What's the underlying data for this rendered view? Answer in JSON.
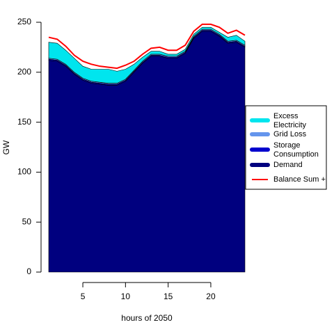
{
  "chart_data": {
    "type": "area",
    "xlabel": "hours of 2050",
    "ylabel": "GW",
    "xlim": [
      1,
      24
    ],
    "ylim": [
      0,
      250
    ],
    "x_ticks": [
      5,
      10,
      15,
      20
    ],
    "y_ticks": [
      0,
      50,
      100,
      150,
      200,
      250
    ],
    "grid": false,
    "legend_position": "right",
    "x": [
      1,
      2,
      3,
      4,
      5,
      6,
      7,
      8,
      9,
      10,
      11,
      12,
      13,
      14,
      15,
      16,
      17,
      18,
      19,
      20,
      21,
      22,
      23,
      24
    ],
    "series": [
      {
        "name": "Demand",
        "label_lines": [
          "Demand"
        ],
        "color": "#00007f",
        "kind": "area",
        "values": [
          212,
          211,
          206,
          198,
          192,
          189,
          188,
          187,
          187,
          191,
          200,
          209,
          216,
          216,
          214,
          214,
          219,
          234,
          241,
          241,
          236,
          229,
          230,
          225
        ]
      },
      {
        "name": "Storage Consumption",
        "label_lines": [
          "Storage",
          "Consumption"
        ],
        "color": "#0000cd",
        "kind": "area",
        "values": [
          1,
          1,
          1,
          1,
          1,
          1,
          1,
          1,
          1,
          1,
          1,
          1,
          1,
          1,
          1,
          1,
          1,
          1,
          1,
          1,
          1,
          1,
          1,
          1
        ]
      },
      {
        "name": "Grid Loss",
        "label_lines": [
          "Grid Loss"
        ],
        "color": "#6495ed",
        "kind": "area",
        "values": [
          1,
          1,
          1,
          1,
          1,
          1,
          1,
          1,
          1,
          1,
          1,
          1,
          1,
          1,
          1,
          1,
          1,
          1,
          1,
          1,
          1,
          1,
          1,
          1
        ]
      },
      {
        "name": "Excess Electricity",
        "label_lines": [
          "Excess",
          "Electricity"
        ],
        "color": "#00e5ee",
        "kind": "area",
        "values": [
          16,
          16,
          14,
          14,
          12,
          12,
          13,
          14,
          12,
          10,
          6,
          4,
          3,
          3,
          2,
          2,
          2,
          2,
          2,
          2,
          2,
          4,
          5,
          4
        ]
      },
      {
        "name": "Balance Sum +",
        "label_lines": [
          "Balance Sum +"
        ],
        "color": "#ff0000",
        "kind": "line",
        "values": [
          235,
          233,
          226,
          217,
          211,
          208,
          206,
          205,
          204,
          207,
          211,
          218,
          224,
          225,
          222,
          222,
          227,
          241,
          248,
          248,
          245,
          239,
          242,
          237
        ]
      }
    ]
  }
}
